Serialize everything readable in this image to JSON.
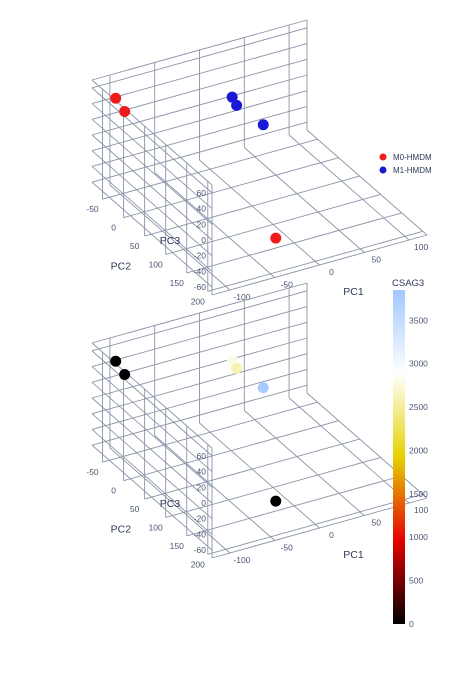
{
  "colors": {
    "m0": "#ee1c1c",
    "m1": "#1a1ad6",
    "grid": "#8a93a8",
    "colorscale": [
      "#000000",
      "#e60000",
      "#e6d200",
      "#ffffff",
      "#a0c8ff"
    ]
  },
  "chart_data": [
    {
      "type": "scatter3d",
      "axes": {
        "x": {
          "title": "PC1",
          "ticks": [
            "-100",
            "-50",
            "0",
            "50",
            "100"
          ]
        },
        "y": {
          "title": "PC2",
          "ticks": [
            "-50",
            "0",
            "50",
            "100",
            "150",
            "200"
          ]
        },
        "z": {
          "title": "PC3",
          "ticks": [
            "-60",
            "-40",
            "-20",
            "0",
            "20",
            "40",
            "60"
          ]
        }
      },
      "legend": {
        "position": "right",
        "items": [
          {
            "name": "M0-HMDM",
            "color": "#ee1c1c"
          },
          {
            "name": "M1-HMDM",
            "color": "#1a1ad6"
          }
        ]
      },
      "series": [
        {
          "name": "M0-HMDM",
          "points": [
            {
              "x": -110,
              "y": -40,
              "z": 60
            },
            {
              "x": -100,
              "y": -40,
              "z": 40
            },
            {
              "x": -30,
              "y": 170,
              "z": -45
            }
          ]
        },
        {
          "name": "M1-HMDM",
          "points": [
            {
              "x": 20,
              "y": -40,
              "z": 20
            },
            {
              "x": 25,
              "y": -40,
              "z": 8
            },
            {
              "x": 50,
              "y": -30,
              "z": -20
            }
          ]
        }
      ]
    },
    {
      "type": "scatter3d",
      "axes": {
        "x": {
          "title": "PC1",
          "ticks": [
            "-100",
            "-50",
            "0",
            "50",
            "100"
          ]
        },
        "y": {
          "title": "PC2",
          "ticks": [
            "-50",
            "0",
            "50",
            "100",
            "150",
            "200"
          ]
        },
        "z": {
          "title": "PC3",
          "ticks": [
            "-60",
            "-40",
            "-20",
            "0",
            "20",
            "40",
            "60"
          ]
        }
      },
      "colorbar": {
        "title": "CSAG3",
        "ticks": [
          0,
          500,
          1000,
          1500,
          2000,
          2500,
          3000,
          3500
        ],
        "range": [
          0,
          3850
        ]
      },
      "series": [
        {
          "name": "CSAG3",
          "points": [
            {
              "x": -110,
              "y": -40,
              "z": 60,
              "value": 0
            },
            {
              "x": -100,
              "y": -40,
              "z": 40,
              "value": 0
            },
            {
              "x": -30,
              "y": 170,
              "z": -45,
              "value": 0
            },
            {
              "x": 20,
              "y": -40,
              "z": 20,
              "value": 2800
            },
            {
              "x": 25,
              "y": -40,
              "z": 8,
              "value": 2600
            },
            {
              "x": 50,
              "y": -30,
              "z": -20,
              "value": 3800
            }
          ]
        }
      ]
    }
  ]
}
